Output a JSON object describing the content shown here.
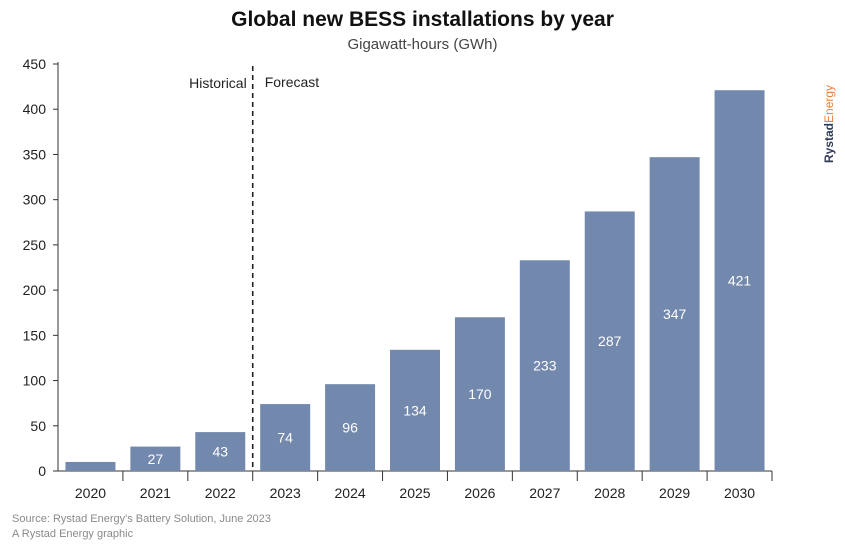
{
  "chart_data": {
    "type": "bar",
    "title": "Global new BESS installations by year",
    "subtitle": "Gigawatt-hours (GWh)",
    "categories": [
      "2020",
      "2021",
      "2022",
      "2023",
      "2024",
      "2025",
      "2026",
      "2027",
      "2028",
      "2029",
      "2030"
    ],
    "values": [
      10,
      27,
      43,
      74,
      96,
      134,
      170,
      233,
      287,
      347,
      421
    ],
    "data_labels": [
      "",
      "27",
      "43",
      "74",
      "96",
      "134",
      "170",
      "233",
      "287",
      "347",
      "421"
    ],
    "ylim": [
      0,
      450
    ],
    "yticks": [
      0,
      50,
      100,
      150,
      200,
      250,
      300,
      350,
      400,
      450
    ],
    "bar_color": "#7388ad",
    "label_color": "#ffffff",
    "divider_label_left": "Historical",
    "divider_label_right": "Forecast",
    "grid": false
  },
  "brand": {
    "name_part1": "Rystad",
    "name_part2": "Energy"
  },
  "source": {
    "line1": "Source: Rystad Energy's Battery Solution, June 2023",
    "line2": "A Rystad Energy graphic"
  }
}
